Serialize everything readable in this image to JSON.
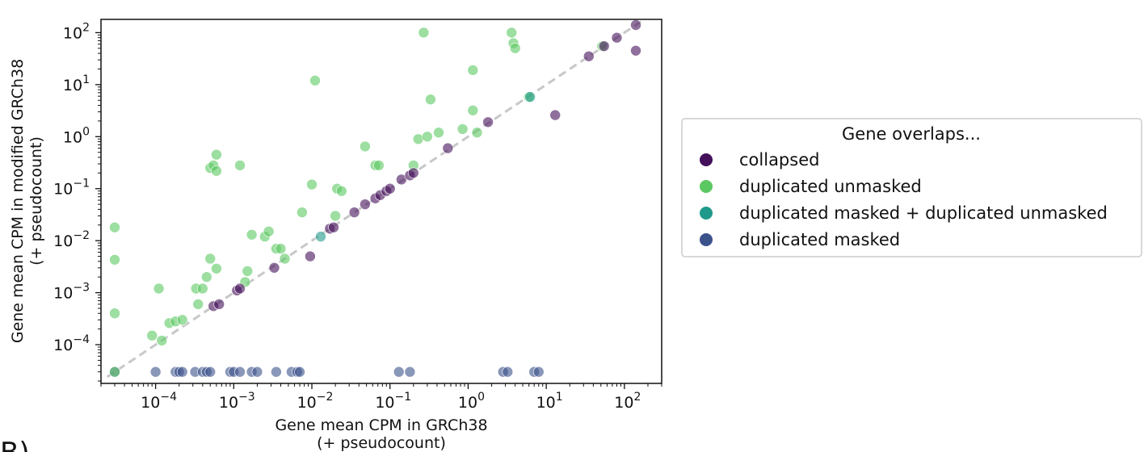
{
  "panel_letter": "B)",
  "chart_data": {
    "type": "scatter",
    "xlabel": "Gene mean CPM in GRCh38",
    "xlabel2": "(+ pseudocount)",
    "ylabel": "Gene mean CPM in modified GRCh38",
    "ylabel2": "(+ pseudocount)",
    "xscale": "log",
    "yscale": "log",
    "xlim": [
      2e-05,
      300
    ],
    "ylim": [
      1.8e-05,
      180
    ],
    "x_ticks": [
      -4,
      -3,
      -2,
      -1,
      0,
      1,
      2
    ],
    "y_ticks": [
      -4,
      -3,
      -2,
      -1,
      0,
      1,
      2
    ],
    "grid": false,
    "diagonal_reference_line": true,
    "legend": {
      "title": "Gene overlaps...",
      "placement": "outside-right",
      "entries": [
        "collapsed",
        "duplicated unmasked",
        "duplicated masked + duplicated unmasked",
        "duplicated masked"
      ]
    },
    "series": [
      {
        "name": "collapsed",
        "color": "#44105a",
        "points": [
          [
            0.00055,
            0.00055
          ],
          [
            0.00065,
            0.0006
          ],
          [
            0.0011,
            0.0011
          ],
          [
            0.0012,
            0.0012
          ],
          [
            0.0033,
            0.003
          ],
          [
            0.0095,
            0.005
          ],
          [
            0.017,
            0.017
          ],
          [
            0.019,
            0.018
          ],
          [
            0.035,
            0.035
          ],
          [
            0.048,
            0.05
          ],
          [
            0.065,
            0.065
          ],
          [
            0.075,
            0.075
          ],
          [
            0.09,
            0.09
          ],
          [
            0.1,
            0.1
          ],
          [
            0.14,
            0.15
          ],
          [
            0.18,
            0.18
          ],
          [
            0.2,
            0.2
          ],
          [
            0.55,
            0.6
          ],
          [
            1.8,
            1.9
          ],
          [
            13,
            2.6
          ],
          [
            35,
            35
          ],
          [
            55,
            55
          ],
          [
            80,
            80
          ],
          [
            140,
            140
          ],
          [
            140,
            45
          ]
        ]
      },
      {
        "name": "duplicated unmasked",
        "color": "#5cc863",
        "points": [
          [
            3e-05,
            0.018
          ],
          [
            3e-05,
            0.0043
          ],
          [
            3e-05,
            0.0004
          ],
          [
            3e-05,
            3e-05
          ],
          [
            9e-05,
            0.00015
          ],
          [
            0.00011,
            0.0012
          ],
          [
            0.00012,
            0.00012
          ],
          [
            0.00015,
            0.00026
          ],
          [
            0.00018,
            0.00028
          ],
          [
            0.00022,
            0.0003
          ],
          [
            0.00033,
            0.0012
          ],
          [
            0.00035,
            0.0006
          ],
          [
            0.0004,
            0.0012
          ],
          [
            0.00045,
            0.002
          ],
          [
            0.0005,
            0.0045
          ],
          [
            0.0005,
            0.25
          ],
          [
            0.00055,
            0.28
          ],
          [
            0.0006,
            0.22
          ],
          [
            0.0006,
            0.45
          ],
          [
            0.0006,
            0.0029
          ],
          [
            0.0012,
            0.28
          ],
          [
            0.0014,
            0.0016
          ],
          [
            0.0015,
            0.0026
          ],
          [
            0.0017,
            0.013
          ],
          [
            0.0025,
            0.012
          ],
          [
            0.0028,
            0.015
          ],
          [
            0.0035,
            0.007
          ],
          [
            0.004,
            0.007
          ],
          [
            0.0045,
            0.0045
          ],
          [
            0.0075,
            0.035
          ],
          [
            0.01,
            0.12
          ],
          [
            0.011,
            12
          ],
          [
            0.02,
            0.03
          ],
          [
            0.021,
            0.1
          ],
          [
            0.024,
            0.09
          ],
          [
            0.048,
            0.65
          ],
          [
            0.065,
            0.28
          ],
          [
            0.072,
            0.28
          ],
          [
            0.2,
            0.28
          ],
          [
            0.23,
            0.9
          ],
          [
            0.27,
            100
          ],
          [
            0.3,
            1.0
          ],
          [
            0.33,
            5.2
          ],
          [
            0.42,
            1.2
          ],
          [
            0.85,
            1.4
          ],
          [
            1.15,
            19
          ],
          [
            1.15,
            3.2
          ],
          [
            1.3,
            1.2
          ],
          [
            3.6,
            100
          ],
          [
            3.8,
            63
          ],
          [
            4,
            50
          ],
          [
            6,
            5.8
          ],
          [
            52,
            55
          ]
        ]
      },
      {
        "name": "duplicated masked + duplicated unmasked",
        "color": "#1f9a8a",
        "points": [
          [
            0.013,
            0.012
          ],
          [
            6.2,
            5.8
          ]
        ]
      },
      {
        "name": "duplicated masked",
        "color": "#3b528b",
        "points": [
          [
            3e-05,
            3e-05
          ],
          [
            0.0001,
            3e-05
          ],
          [
            0.00018,
            3e-05
          ],
          [
            0.0002,
            3e-05
          ],
          [
            0.00022,
            3e-05
          ],
          [
            0.00032,
            3e-05
          ],
          [
            0.0004,
            3e-05
          ],
          [
            0.00045,
            3e-05
          ],
          [
            0.0005,
            3e-05
          ],
          [
            0.0009,
            3e-05
          ],
          [
            0.001,
            3e-05
          ],
          [
            0.0012,
            3e-05
          ],
          [
            0.0017,
            3e-05
          ],
          [
            0.002,
            3e-05
          ],
          [
            0.0035,
            3e-05
          ],
          [
            0.0055,
            3e-05
          ],
          [
            0.0065,
            3e-05
          ],
          [
            0.007,
            3e-05
          ],
          [
            0.13,
            3e-05
          ],
          [
            0.18,
            3e-05
          ],
          [
            2.8,
            3e-05
          ],
          [
            3.2,
            3e-05
          ],
          [
            7,
            3e-05
          ],
          [
            8,
            3e-05
          ]
        ]
      }
    ]
  }
}
